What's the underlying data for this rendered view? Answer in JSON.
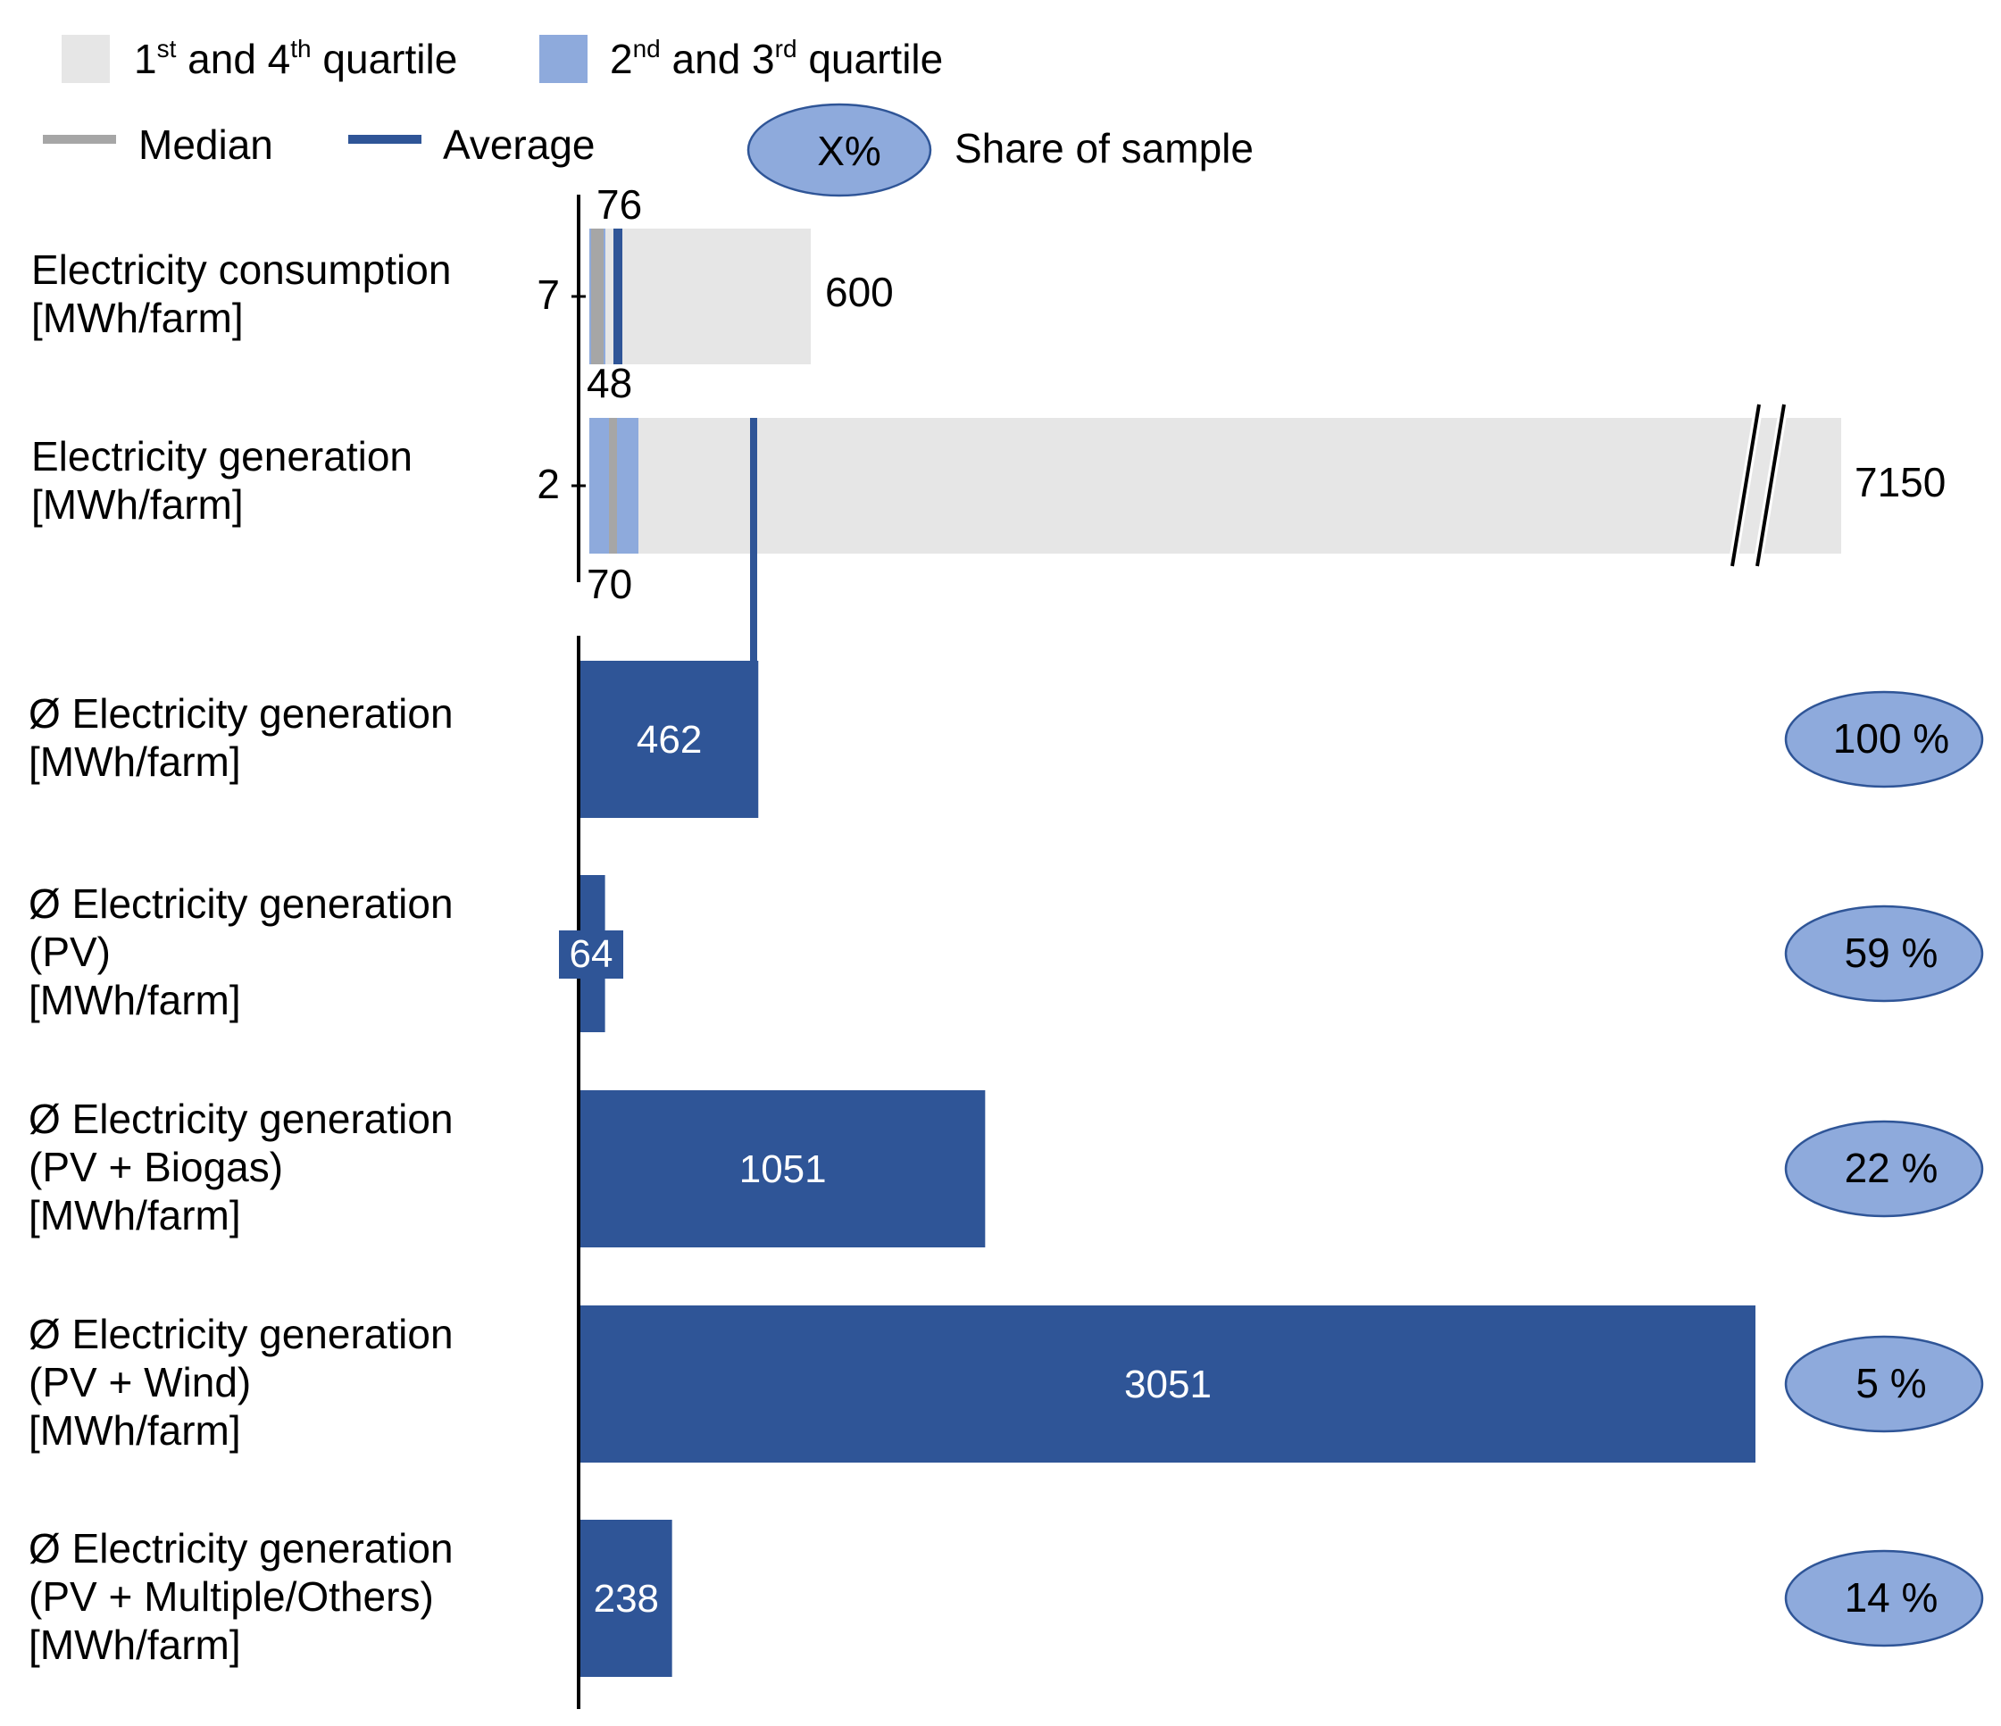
{
  "legend": {
    "q14": {
      "pre": "1",
      "sup1": "st",
      "mid": " and 4",
      "sup2": "th",
      "post": " quartile",
      "color": "#e6e6e6"
    },
    "q23": {
      "pre": "2",
      "sup1": "nd",
      "mid": " and 3",
      "sup2": "rd",
      "post": " quartile",
      "color": "#8eaadc"
    },
    "median": {
      "label": "Median",
      "color": "#a6a6a6"
    },
    "average": {
      "label": "Average",
      "color": "#2f5597"
    },
    "share": {
      "symbol": "X%",
      "label": "Share of sample"
    }
  },
  "chart_data": [
    {
      "type": "boxplot",
      "rows": [
        {
          "label_lines": [
            "Electricity consumption",
            "[MWh/farm]"
          ],
          "min": 7,
          "q1": 7,
          "median": 20,
          "q3": 20,
          "max": 600,
          "average": 48,
          "min_label": "7",
          "max_label": "600",
          "upper_label": "76",
          "lower_label": "48"
        },
        {
          "label_lines": [
            "Electricity generation",
            "[MWh/farm]"
          ],
          "min": 2,
          "q1": 2,
          "median": 38,
          "q3": 70,
          "max": 7150,
          "average": 462,
          "axis_break": true,
          "min_label": "2",
          "max_label": "7150",
          "lower_label": "70"
        }
      ]
    },
    {
      "type": "bar",
      "series_name": "Ø Electricity generation",
      "categories": [
        {
          "label_lines": [
            "Ø Electricity generation",
            "[MWh/farm]"
          ],
          "value": 462,
          "value_label": "462",
          "share": "100 %"
        },
        {
          "label_lines": [
            "Ø Electricity generation",
            "(PV)",
            "[MWh/farm]"
          ],
          "value": 64,
          "value_label": "64",
          "share": "59 %"
        },
        {
          "label_lines": [
            "Ø Electricity generation",
            "(PV + Biogas)",
            "[MWh/farm]"
          ],
          "value": 1051,
          "value_label": "1051",
          "share": "22 %"
        },
        {
          "label_lines": [
            "Ø Electricity generation",
            "(PV + Wind)",
            "[MWh/farm]"
          ],
          "value": 3051,
          "value_label": "3051",
          "share": "5 %"
        },
        {
          "label_lines": [
            "Ø Electricity generation",
            "(PV + Multiple/Others)",
            "[MWh/farm]"
          ],
          "value": 238,
          "value_label": "238",
          "share": "14 %"
        }
      ],
      "bar_color": "#2f5597",
      "share_color": "#8eaadc",
      "text_color": "#ffffff"
    }
  ]
}
